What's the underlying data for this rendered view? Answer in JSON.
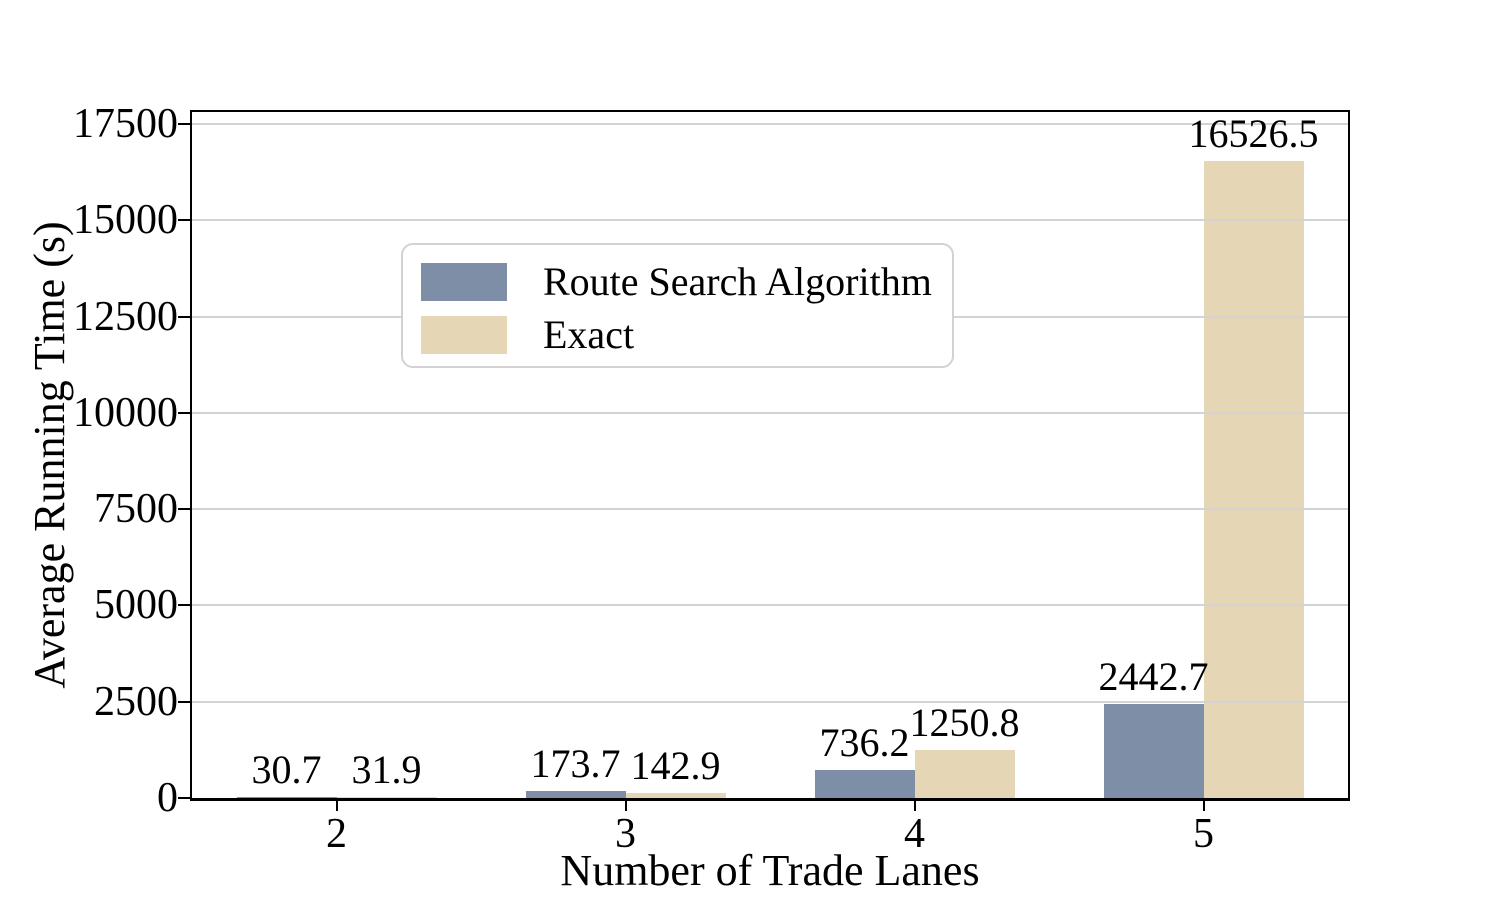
{
  "chart_data": {
    "type": "bar",
    "title": "",
    "xlabel": "Number of Trade Lanes",
    "ylabel": "Average Running Time (s)",
    "categories": [
      "2",
      "3",
      "4",
      "5"
    ],
    "series": [
      {
        "name": "Route Search Algorithm",
        "color": "#7e8ea6",
        "values": [
          30.7,
          173.7,
          736.2,
          2442.7
        ]
      },
      {
        "name": "Exact",
        "color": "#e5d7b6",
        "values": [
          31.9,
          142.9,
          1250.8,
          16526.5
        ]
      }
    ],
    "bar_value_labels": [
      [
        "30.7",
        "173.7",
        "736.2",
        "2442.7"
      ],
      [
        "31.9",
        "142.9",
        "1250.8",
        "16526.5"
      ]
    ],
    "yticks": [
      "0",
      "2500",
      "5000",
      "7500",
      "10000",
      "12500",
      "15000",
      "17500"
    ],
    "ytick_values": [
      0,
      2500,
      5000,
      7500,
      10000,
      12500,
      15000,
      17500
    ],
    "ylim": [
      0,
      17810
    ],
    "grid": "horizontal",
    "legend_position": "upper-left",
    "colors": {
      "background": "#ffffff",
      "axis": "#000000",
      "text": "#000000",
      "gridline": "#d3d3d3",
      "legend_border": "#d2d2d2"
    }
  }
}
